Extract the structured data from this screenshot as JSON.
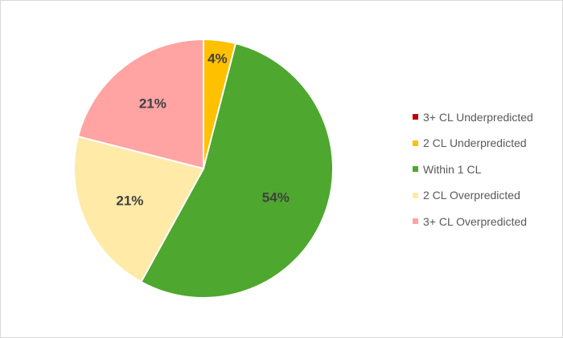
{
  "chart_data": {
    "type": "pie",
    "categories": [
      "3+ CL Underpredicted",
      "2 CL Underpredicted",
      "Within 1 CL",
      "2 CL Overpredicted",
      "3+ CL Overpredicted"
    ],
    "values": [
      0,
      4,
      54,
      21,
      21
    ],
    "data_labels": [
      "",
      "4%",
      "54%",
      "21%",
      "21%"
    ],
    "colors": [
      "#c00000",
      "#ffc000",
      "#4ea72e",
      "#ffeaa7",
      "#ffa3a3"
    ],
    "title": "",
    "legend_position": "right"
  }
}
